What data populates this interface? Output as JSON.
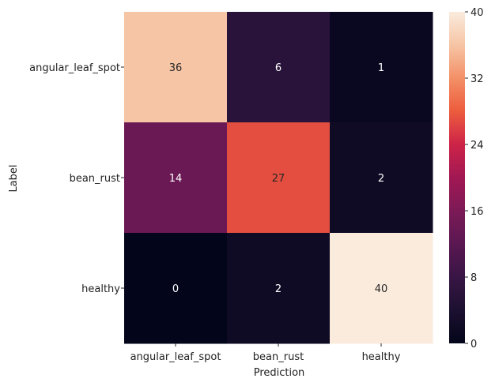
{
  "chart_data": {
    "type": "heatmap",
    "title": "",
    "xlabel": "Prediction",
    "ylabel": "Label",
    "x_categories": [
      "angular_leaf_spot",
      "bean_rust",
      "healthy"
    ],
    "y_categories": [
      "angular_leaf_spot",
      "bean_rust",
      "healthy"
    ],
    "values": [
      [
        36,
        6,
        1
      ],
      [
        14,
        27,
        2
      ],
      [
        0,
        2,
        40
      ]
    ],
    "cell_labels": [
      [
        "36",
        "6",
        "1"
      ],
      [
        "14",
        "27",
        "2"
      ],
      [
        "0",
        "2",
        "40"
      ]
    ],
    "colorbar": {
      "min": 0,
      "max": 40,
      "ticks": [
        0,
        8,
        16,
        24,
        32,
        40
      ],
      "tick_labels": [
        "0",
        "8",
        "16",
        "24",
        "32",
        "40"
      ],
      "colormap": "rocket"
    },
    "grid": false
  }
}
